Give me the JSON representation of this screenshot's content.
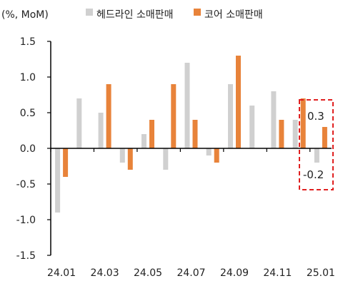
{
  "chart_data": {
    "type": "bar",
    "unit_label": "(%, MoM)",
    "categories": [
      "24.01",
      "24.02",
      "24.03",
      "24.04",
      "24.05",
      "24.06",
      "24.07",
      "24.08",
      "24.09",
      "24.10",
      "24.11",
      "24.12",
      "25.01"
    ],
    "x_tick_labels": [
      "24.01",
      "24.03",
      "24.05",
      "24.07",
      "24.09",
      "24.11",
      "25.01"
    ],
    "series": [
      {
        "name": "헤드라인 소매판매",
        "color": "#d0d0d0",
        "values": [
          -0.9,
          0.7,
          0.5,
          -0.2,
          0.2,
          -0.3,
          1.2,
          -0.1,
          0.9,
          0.6,
          0.8,
          0.4,
          -0.2
        ]
      },
      {
        "name": "코어 소매판매",
        "color": "#e8833a",
        "values": [
          -0.4,
          0.0,
          0.9,
          -0.3,
          0.4,
          0.9,
          0.4,
          -0.2,
          1.3,
          0.0,
          0.4,
          0.7,
          0.3
        ]
      }
    ],
    "ylim": [
      -1.5,
      1.5
    ],
    "yticks": [
      "1.5",
      "1.0",
      "0.5",
      "0.0",
      "-0.5",
      "-1.0",
      "-1.5"
    ],
    "annotations": {
      "core_latest": "0.3",
      "headline_latest": "-0.2",
      "highlight_color": "#e02020"
    },
    "grid": false,
    "legend_position": "top"
  }
}
